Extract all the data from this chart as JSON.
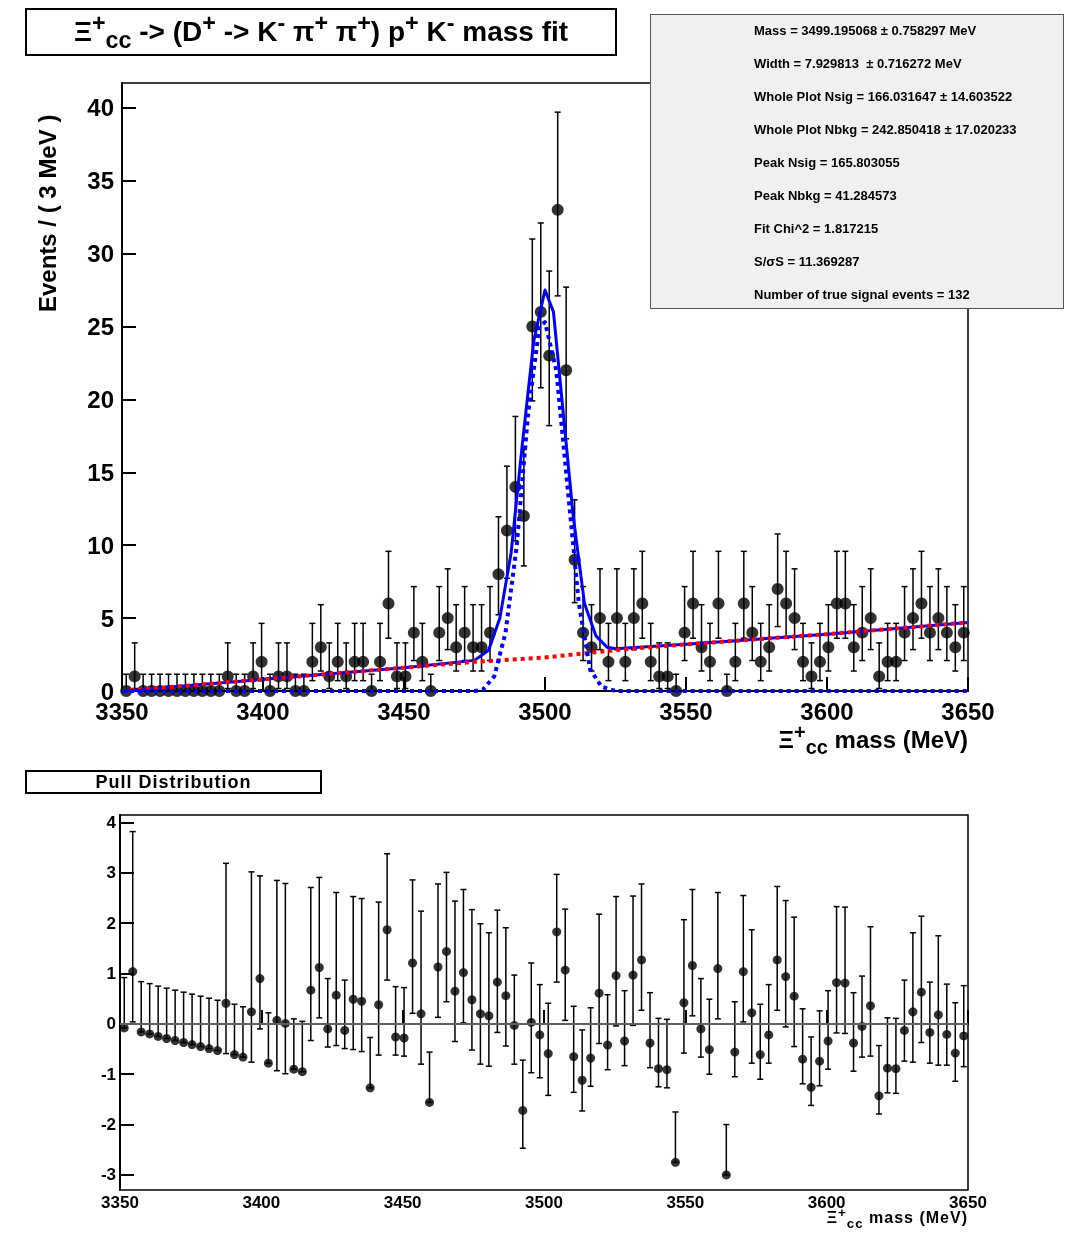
{
  "chart_data": [
    {
      "type": "scatter",
      "title": "Ξ$^{+}$$_{cc}$ -> (D$^{+}$ -> K$^{-}$ π$^{+}$ π$^{+}$) p$^{+}$ K$^{-}$ mass fit",
      "xlabel": "Ξ$^{+}$$_{cc}$ mass (MeV)",
      "ylabel": "Events / ( 3 MeV )",
      "xlim": [
        3350,
        3650
      ],
      "xticks": [
        3350,
        3400,
        3450,
        3500,
        3550,
        3600,
        3650
      ],
      "ylim": [
        0,
        41.7
      ],
      "yticks": [
        0,
        5,
        10,
        15,
        20,
        25,
        30,
        35,
        40
      ],
      "annotations": [
        "Mass = 3499.195068 ± 0.758297 MeV",
        "Width = 7.929813  ± 0.716272 MeV",
        "Whole Plot Nsig = 166.031647 ± 14.603522",
        "Whole Plot Nbkg = 242.850418 ± 17.020233",
        "Peak Nsig = 165.803055",
        "Peak Nbkg = 41.284573",
        "Fit Chi^2 = 1.817215",
        "S/σS = 11.369287",
        "Number of true signal events = 132"
      ],
      "x": [
        3351.5,
        3354.5,
        3357.5,
        3360.5,
        3363.5,
        3366.5,
        3369.5,
        3372.5,
        3375.5,
        3378.5,
        3381.5,
        3384.5,
        3387.5,
        3390.5,
        3393.5,
        3396.5,
        3399.5,
        3402.5,
        3405.5,
        3408.5,
        3411.5,
        3414.5,
        3417.5,
        3420.5,
        3423.5,
        3426.5,
        3429.5,
        3432.5,
        3435.5,
        3438.5,
        3441.5,
        3444.5,
        3447.5,
        3450.5,
        3453.5,
        3456.5,
        3459.5,
        3462.5,
        3465.5,
        3468.5,
        3471.5,
        3474.5,
        3477.5,
        3480.5,
        3483.5,
        3486.5,
        3489.5,
        3492.5,
        3495.5,
        3498.5,
        3501.5,
        3504.5,
        3507.5,
        3510.5,
        3513.5,
        3516.5,
        3519.5,
        3522.5,
        3525.5,
        3528.5,
        3531.5,
        3534.5,
        3537.5,
        3540.5,
        3543.5,
        3546.5,
        3549.5,
        3552.5,
        3555.5,
        3558.5,
        3561.5,
        3564.5,
        3567.5,
        3570.5,
        3573.5,
        3576.5,
        3579.5,
        3582.5,
        3585.5,
        3588.5,
        3591.5,
        3594.5,
        3597.5,
        3600.5,
        3603.5,
        3606.5,
        3609.5,
        3612.5,
        3615.5,
        3618.5,
        3621.5,
        3624.5,
        3627.5,
        3630.5,
        3633.5,
        3636.5,
        3639.5,
        3642.5,
        3645.5,
        3648.5
      ],
      "series": [
        {
          "type": "scatter",
          "color": "#000000",
          "marker": "circle",
          "values": [
            0,
            1,
            0,
            0,
            0,
            0,
            0,
            0,
            0,
            0,
            0,
            0,
            1,
            0,
            0,
            1,
            2,
            0,
            1,
            1,
            0,
            0,
            2,
            3,
            1,
            2,
            1,
            2,
            2,
            0,
            2,
            6,
            1,
            1,
            4,
            2,
            0,
            4,
            5,
            3,
            4,
            3,
            3,
            4,
            8,
            11,
            14,
            12,
            25,
            26,
            23,
            33,
            22,
            9,
            4,
            3,
            5,
            2,
            5,
            2,
            5,
            6,
            2,
            1,
            1,
            0,
            4,
            6,
            3,
            2,
            6,
            0,
            2,
            6,
            4,
            2,
            3,
            7,
            6,
            5,
            2,
            1,
            2,
            3,
            6,
            6,
            3,
            4,
            5,
            1,
            2,
            2,
            4,
            5,
            6,
            4,
            5,
            4,
            3,
            4
          ],
          "errors": [
            [
              0,
              1.15
            ],
            [
              0.17,
              3.3
            ],
            [
              0,
              1.15
            ],
            [
              0,
              1.15
            ],
            [
              0,
              1.15
            ],
            [
              0,
              1.15
            ],
            [
              0,
              1.15
            ],
            [
              0,
              1.15
            ],
            [
              0,
              1.15
            ],
            [
              0,
              1.15
            ],
            [
              0,
              1.15
            ],
            [
              0,
              1.15
            ],
            [
              0.17,
              3.3
            ],
            [
              0,
              1.15
            ],
            [
              0,
              1.15
            ],
            [
              0.17,
              3.3
            ],
            [
              0.71,
              4.64
            ],
            [
              0,
              1.15
            ],
            [
              0.17,
              3.3
            ],
            [
              0.17,
              3.3
            ],
            [
              0,
              1.15
            ],
            [
              0,
              1.15
            ],
            [
              0.71,
              4.64
            ],
            [
              1.37,
              5.92
            ],
            [
              0.17,
              3.3
            ],
            [
              0.71,
              4.64
            ],
            [
              0.17,
              3.3
            ],
            [
              0.71,
              4.64
            ],
            [
              0.71,
              4.64
            ],
            [
              0,
              1.15
            ],
            [
              0.71,
              4.64
            ],
            [
              3.62,
              9.58
            ],
            [
              0.17,
              3.3
            ],
            [
              0.17,
              3.3
            ],
            [
              2.09,
              7.16
            ],
            [
              0.71,
              4.64
            ],
            [
              0,
              1.15
            ],
            [
              2.09,
              7.16
            ],
            [
              2.84,
              8.38
            ],
            [
              1.37,
              5.92
            ],
            [
              2.09,
              7.16
            ],
            [
              1.37,
              5.92
            ],
            [
              1.37,
              5.92
            ],
            [
              2.09,
              7.16
            ],
            [
              5.23,
              11.95
            ],
            [
              7.73,
              15.42
            ],
            [
              10.3,
              18.83
            ],
            [
              8.58,
              16.56
            ],
            [
              19.9,
              31
            ],
            [
              20.8,
              32.1
            ],
            [
              18.2,
              28.8
            ],
            [
              27.1,
              39.7
            ],
            [
              17.3,
              27.7
            ],
            [
              6.06,
              13.11
            ],
            [
              2.09,
              7.16
            ],
            [
              1.37,
              5.92
            ],
            [
              2.84,
              8.38
            ],
            [
              0.71,
              4.64
            ],
            [
              2.84,
              8.38
            ],
            [
              0.71,
              4.64
            ],
            [
              2.84,
              8.38
            ],
            [
              3.62,
              9.58
            ],
            [
              0.71,
              4.64
            ],
            [
              0.17,
              3.3
            ],
            [
              0.17,
              3.3
            ],
            [
              0,
              1.15
            ],
            [
              2.09,
              7.16
            ],
            [
              3.62,
              9.58
            ],
            [
              1.37,
              5.92
            ],
            [
              0.71,
              4.64
            ],
            [
              3.62,
              9.58
            ],
            [
              0,
              1.15
            ],
            [
              0.71,
              4.64
            ],
            [
              3.62,
              9.58
            ],
            [
              2.09,
              7.16
            ],
            [
              0.71,
              4.64
            ],
            [
              1.37,
              5.92
            ],
            [
              4.42,
              10.77
            ],
            [
              3.62,
              9.58
            ],
            [
              2.84,
              8.38
            ],
            [
              0.71,
              4.64
            ],
            [
              0.17,
              3.3
            ],
            [
              0.71,
              4.64
            ],
            [
              1.37,
              5.92
            ],
            [
              3.62,
              9.58
            ],
            [
              3.62,
              9.58
            ],
            [
              1.37,
              5.92
            ],
            [
              2.09,
              7.16
            ],
            [
              2.84,
              8.38
            ],
            [
              0.17,
              3.3
            ],
            [
              0.71,
              4.64
            ],
            [
              0.71,
              4.64
            ],
            [
              2.09,
              7.16
            ],
            [
              2.84,
              8.38
            ],
            [
              3.62,
              9.58
            ],
            [
              2.09,
              7.16
            ],
            [
              2.84,
              8.38
            ],
            [
              2.09,
              7.16
            ],
            [
              1.37,
              5.92
            ],
            [
              2.09,
              7.16
            ]
          ]
        },
        {
          "type": "line",
          "color": "#0000ff",
          "marker": "none",
          "line_style": "solid",
          "x": [
            3350,
            3400,
            3450,
            3475,
            3480,
            3484,
            3488,
            3492,
            3496,
            3500,
            3503,
            3506,
            3510,
            3514,
            3518,
            3522,
            3525,
            3550,
            3600,
            3650
          ],
          "values": [
            0,
            0.8,
            1.6,
            2.1,
            2.8,
            5,
            9.5,
            17,
            24,
            27.5,
            26,
            20,
            12,
            6,
            3.8,
            3,
            2.9,
            3.2,
            3.9,
            4.7
          ]
        },
        {
          "type": "line",
          "color": "#ff0000",
          "marker": "none",
          "line_style": "dotted",
          "x": [
            3350,
            3400,
            3450,
            3475,
            3500,
            3525,
            3550,
            3600,
            3650
          ],
          "values": [
            0,
            0.8,
            1.6,
            2,
            2.3,
            2.8,
            3.2,
            3.9,
            4.7
          ]
        },
        {
          "type": "line",
          "color": "#0000ff",
          "marker": "none",
          "line_style": "dotted",
          "x": [
            3350,
            3475,
            3478,
            3482,
            3486,
            3490,
            3494,
            3498,
            3500,
            3504,
            3508,
            3512,
            3516,
            3520,
            3525,
            3650
          ],
          "values": [
            0,
            0,
            0.1,
            1,
            4,
            10,
            19,
            25,
            25.3,
            22,
            14,
            6,
            1.5,
            0.3,
            0,
            0
          ]
        }
      ]
    },
    {
      "type": "scatter",
      "title": "Pull Distribution",
      "xlabel": "Ξ$^{+}$$_{cc}$ mass (MeV)",
      "xlim": [
        3350,
        3650
      ],
      "xticks": [
        3350,
        3400,
        3450,
        3500,
        3550,
        3600,
        3650
      ],
      "ylim": [
        -3.3,
        4.15
      ],
      "yticks": [
        -3,
        -2,
        -1,
        0,
        1,
        2,
        3,
        4
      ],
      "marker": "circle",
      "ref_lines": [
        {
          "axis": "y",
          "value": 0,
          "color": "#808080"
        }
      ],
      "x": [
        3351.5,
        3354.5,
        3357.5,
        3360.5,
        3363.5,
        3366.5,
        3369.5,
        3372.5,
        3375.5,
        3378.5,
        3381.5,
        3384.5,
        3387.5,
        3390.5,
        3393.5,
        3396.5,
        3399.5,
        3402.5,
        3405.5,
        3408.5,
        3411.5,
        3414.5,
        3417.5,
        3420.5,
        3423.5,
        3426.5,
        3429.5,
        3432.5,
        3435.5,
        3438.5,
        3441.5,
        3444.5,
        3447.5,
        3450.5,
        3453.5,
        3456.5,
        3459.5,
        3462.5,
        3465.5,
        3468.5,
        3471.5,
        3474.5,
        3477.5,
        3480.5,
        3483.5,
        3486.5,
        3489.5,
        3492.5,
        3495.5,
        3498.5,
        3501.5,
        3504.5,
        3507.5,
        3510.5,
        3513.5,
        3516.5,
        3519.5,
        3522.5,
        3525.5,
        3528.5,
        3531.5,
        3534.5,
        3537.5,
        3540.5,
        3543.5,
        3546.5,
        3549.5,
        3552.5,
        3555.5,
        3558.5,
        3561.5,
        3564.5,
        3567.5,
        3570.5,
        3573.5,
        3576.5,
        3579.5,
        3582.5,
        3585.5,
        3588.5,
        3591.5,
        3594.5,
        3597.5,
        3600.5,
        3603.5,
        3606.5,
        3609.5,
        3612.5,
        3615.5,
        3618.5,
        3621.5,
        3624.5,
        3627.5,
        3630.5,
        3633.5,
        3636.5,
        3639.5,
        3642.5,
        3645.5,
        3648.5
      ],
      "series": [
        {
          "type": "scatter",
          "color": "#000000",
          "values": [
            -0.08,
            1.04,
            -0.16,
            -0.2,
            -0.25,
            -0.29,
            -0.33,
            -0.37,
            -0.41,
            -0.45,
            -0.49,
            -0.53,
            0.41,
            -0.61,
            -0.66,
            0.24,
            0.9,
            -0.78,
            0.07,
            0.01,
            -0.9,
            -0.95,
            0.67,
            1.12,
            -0.1,
            0.57,
            -0.13,
            0.49,
            0.45,
            -1.27,
            0.38,
            1.87,
            -0.26,
            -0.28,
            1.21,
            0.2,
            -1.56,
            1.13,
            1.44,
            0.65,
            1.02,
            0.48,
            0.2,
            0.16,
            0.83,
            0.56,
            -0.03,
            -1.72,
            0.03,
            -0.22,
            -0.59,
            1.83,
            1.07,
            -0.65,
            -1.12,
            -0.68,
            0.61,
            -0.42,
            0.96,
            -0.34,
            0.97,
            1.27,
            -0.38,
            -0.89,
            -0.91,
            -2.75,
            0.42,
            1.16,
            -0.1,
            -0.51,
            1.1,
            -3,
            -0.56,
            1.04,
            0.22,
            -0.61,
            -0.22,
            1.27,
            0.94,
            0.55,
            -0.7,
            -1.26,
            -0.74,
            -0.34,
            0.82,
            0.81,
            -0.38,
            -0.05,
            0.36,
            -1.43,
            -0.88,
            -0.89,
            -0.13,
            0.24,
            0.63,
            -0.17,
            0.18,
            -0.21,
            -0.58,
            -0.24
          ],
          "errors": [
            [
              -0.08,
              0.92
            ],
            [
              0.04,
              3.82
            ],
            [
              -0.16,
              0.84
            ],
            [
              -0.2,
              0.8
            ],
            [
              -0.25,
              0.75
            ],
            [
              -0.29,
              0.71
            ],
            [
              -0.33,
              0.67
            ],
            [
              -0.37,
              0.63
            ],
            [
              -0.41,
              0.59
            ],
            [
              -0.45,
              0.55
            ],
            [
              -0.49,
              0.51
            ],
            [
              -0.53,
              0.47
            ],
            [
              -0.59,
              3.19
            ],
            [
              -0.61,
              0.39
            ],
            [
              -0.66,
              0.34
            ],
            [
              -0.76,
              3.02
            ],
            [
              -0.1,
              2.94
            ],
            [
              -0.78,
              0.22
            ],
            [
              -0.93,
              2.85
            ],
            [
              -0.99,
              2.79
            ],
            [
              -0.9,
              0.1
            ],
            [
              -0.95,
              0.05
            ],
            [
              -0.33,
              2.71
            ],
            [
              0.12,
              2.91
            ],
            [
              -0.46,
              0.9
            ],
            [
              -0.43,
              2.61
            ],
            [
              -0.49,
              0.87
            ],
            [
              -0.51,
              2.53
            ],
            [
              -0.55,
              2.49
            ],
            [
              -1.27,
              -0.27
            ],
            [
              -0.62,
              2.42
            ],
            [
              0.87,
              3.38
            ],
            [
              -0.62,
              0.74
            ],
            [
              -0.64,
              0.72
            ],
            [
              0.21,
              2.86
            ],
            [
              -0.8,
              2.24
            ],
            [
              -1.56,
              -0.56
            ],
            [
              0.13,
              2.78
            ],
            [
              0.44,
              3.01
            ],
            [
              -0.35,
              2.44
            ],
            [
              0.02,
              2.67
            ],
            [
              -0.52,
              2.27
            ],
            [
              -0.8,
              1.99
            ],
            [
              -0.84,
              1.81
            ],
            [
              -0.17,
              2.26
            ],
            [
              -0.44,
              1.91
            ],
            [
              -0.8,
              0.97
            ],
            [
              -2.47,
              -0.72
            ],
            [
              -0.97,
              1.21
            ],
            [
              -1.07,
              0.78
            ],
            [
              -1.42,
              0.41
            ],
            [
              0.83,
              2.97
            ],
            [
              0.07,
              2.28
            ],
            [
              -1.36,
              0.35
            ],
            [
              -1.73,
              -0.12
            ],
            [
              -1.24,
              0.32
            ],
            [
              -0.39,
              2.18
            ],
            [
              -0.91,
              0.58
            ],
            [
              -0.04,
              2.53
            ],
            [
              -0.83,
              0.66
            ],
            [
              -0.03,
              2.54
            ],
            [
              0.27,
              2.78
            ],
            [
              -0.87,
              0.62
            ],
            [
              -1.25,
              0.11
            ],
            [
              -1.27,
              0.09
            ],
            [
              -2.75,
              -1.75
            ],
            [
              -0.58,
              2.07
            ],
            [
              0.16,
              2.67
            ],
            [
              -0.66,
              0.9
            ],
            [
              -1,
              0.49
            ],
            [
              0.1,
              2.61
            ],
            [
              -3,
              -2
            ],
            [
              -1.05,
              0.44
            ],
            [
              0.04,
              2.55
            ],
            [
              -0.78,
              1.87
            ],
            [
              -1.1,
              0.39
            ],
            [
              -0.78,
              0.78
            ],
            [
              0.27,
              2.73
            ],
            [
              -0.06,
              2.45
            ],
            [
              -0.45,
              2.12
            ],
            [
              -1.19,
              0.3
            ],
            [
              -1.62,
              -0.26
            ],
            [
              -1.23,
              0.26
            ],
            [
              -0.9,
              0.66
            ],
            [
              -0.18,
              2.33
            ],
            [
              -0.19,
              2.32
            ],
            [
              -0.94,
              0.62
            ],
            [
              -0.66,
              0.95
            ],
            [
              -0.64,
              1.93
            ],
            [
              -1.79,
              -0.43
            ],
            [
              -1.37,
              0.12
            ],
            [
              -1.38,
              0.11
            ],
            [
              -0.74,
              0.87
            ],
            [
              -0.76,
              1.81
            ],
            [
              -0.37,
              2.14
            ],
            [
              -0.78,
              0.83
            ],
            [
              -0.82,
              1.75
            ],
            [
              -0.82,
              0.79
            ],
            [
              -1.14,
              0.42
            ],
            [
              -0.85,
              0.76
            ]
          ]
        }
      ]
    }
  ]
}
